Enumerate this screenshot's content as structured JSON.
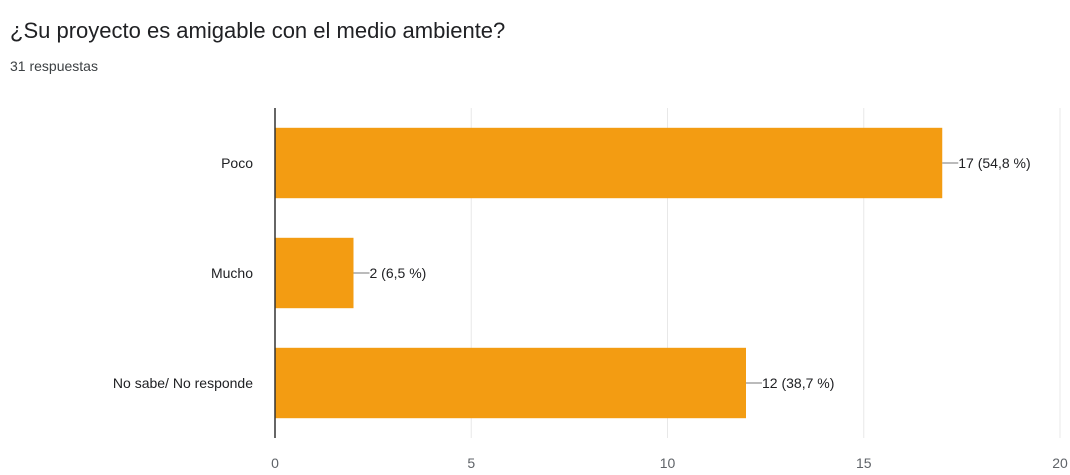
{
  "header": {
    "title": "¿Su proyecto es amigable con el medio ambiente?",
    "subtitle": "31 respuestas"
  },
  "chart_data": {
    "type": "bar",
    "orientation": "horizontal",
    "categories": [
      "Poco",
      "Mucho",
      "No sabe/ No responde"
    ],
    "values": [
      17,
      2,
      12
    ],
    "data_labels": [
      "17 (54,8 %)",
      "2 (6,5 %)",
      "12 (38,7 %)"
    ],
    "xlim": [
      0,
      20
    ],
    "x_ticks": [
      0,
      5,
      10,
      15,
      20
    ],
    "grid": true,
    "bar_color": "#f39c12",
    "grid_color": "#e8e8e8",
    "axis_color": "#333333"
  }
}
